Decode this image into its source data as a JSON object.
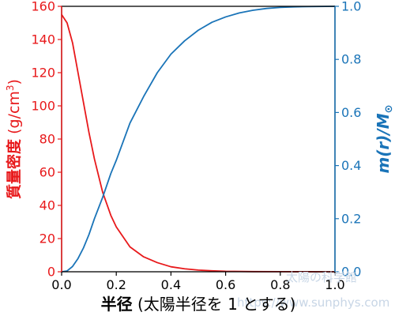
{
  "colors": {
    "density": "#e8191b",
    "mass": "#1a74b8",
    "frame": "#000000",
    "watermark": "#c8d6e6"
  },
  "chart_data": {
    "type": "line",
    "xlabel_bold": "半径",
    "xlabel_rest": " (太陽半径を 1 とする)",
    "ylabel_left": "質量密度",
    "ylabel_left_unit": "(g/cm",
    "ylabel_left_unit_sup": "3",
    "ylabel_left_unit_close": ")",
    "ylabel_right": "m(r)/M",
    "ylabel_right_sub": "⊙",
    "xlim": [
      0,
      1
    ],
    "ylim_left": [
      0,
      160
    ],
    "ylim_right": [
      0,
      1
    ],
    "xticks": [
      0.0,
      0.2,
      0.4,
      0.6,
      0.8,
      1.0
    ],
    "xtick_labels": [
      "0.0",
      "0.2",
      "0.4",
      "0.6",
      "0.8",
      "1.0"
    ],
    "yticks_left": [
      0,
      20,
      40,
      60,
      80,
      100,
      120,
      140,
      160
    ],
    "ytick_labels_left": [
      "0",
      "20",
      "40",
      "60",
      "80",
      "100",
      "120",
      "140",
      "160"
    ],
    "yticks_right": [
      0.0,
      0.2,
      0.4,
      0.6,
      0.8,
      1.0
    ],
    "ytick_labels_right": [
      "0.0",
      "0.2",
      "0.4",
      "0.6",
      "0.8",
      "1.0"
    ],
    "series": [
      {
        "axis": "left",
        "color": "#e8191b",
        "x": [
          0.0,
          0.02,
          0.04,
          0.06,
          0.08,
          0.1,
          0.12,
          0.15,
          0.18,
          0.2,
          0.25,
          0.3,
          0.35,
          0.4,
          0.45,
          0.5,
          0.55,
          0.6,
          0.7,
          0.8,
          0.9,
          1.0
        ],
        "y": [
          155,
          150,
          138,
          120,
          102,
          84,
          68,
          48,
          34,
          27,
          15,
          9,
          5.5,
          3,
          1.8,
          1,
          0.6,
          0.3,
          0.1,
          0.05,
          0.02,
          0
        ]
      },
      {
        "axis": "right",
        "color": "#1a74b8",
        "x": [
          0.0,
          0.02,
          0.04,
          0.06,
          0.08,
          0.1,
          0.12,
          0.15,
          0.18,
          0.2,
          0.25,
          0.3,
          0.35,
          0.4,
          0.45,
          0.5,
          0.55,
          0.6,
          0.65,
          0.7,
          0.75,
          0.8,
          0.85,
          0.9,
          1.0
        ],
        "y": [
          0.0,
          0.003,
          0.02,
          0.05,
          0.09,
          0.14,
          0.2,
          0.28,
          0.37,
          0.42,
          0.56,
          0.66,
          0.75,
          0.82,
          0.87,
          0.91,
          0.94,
          0.96,
          0.975,
          0.985,
          0.992,
          0.996,
          0.998,
          0.999,
          1.0
        ]
      }
    ]
  },
  "watermark": {
    "line1": "太陽の科学館",
    "line2": "https://www.sunphys.com"
  }
}
